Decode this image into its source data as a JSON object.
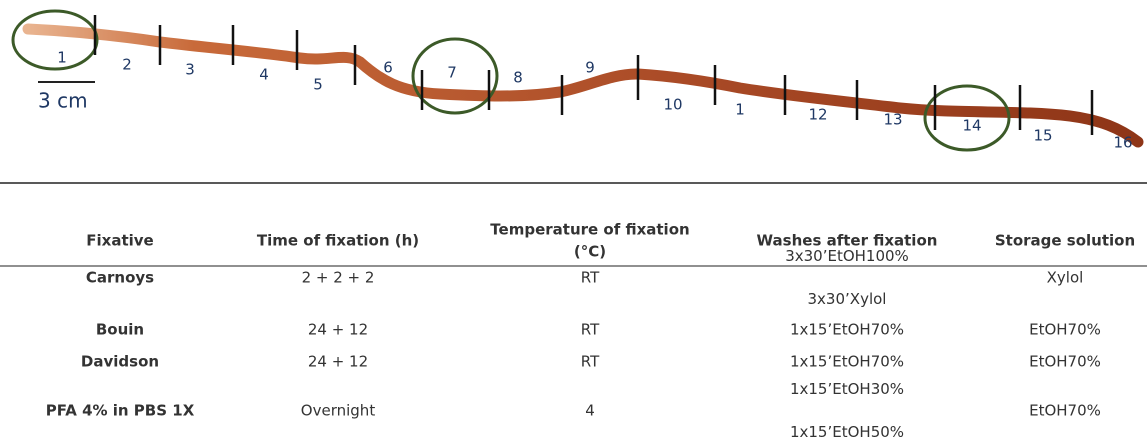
{
  "figure": {
    "scale_label": "3 cm",
    "segments": [
      "1",
      "2",
      "3",
      "4",
      "5",
      "6",
      "7",
      "8",
      "9",
      "10",
      "1",
      "12",
      "13",
      "14",
      "15",
      "16"
    ]
  },
  "table": {
    "header": [
      [
        "Fixative"
      ],
      [
        "Time of fixation (h)"
      ],
      [
        "Temperature of fixation",
        "(°C)"
      ],
      [
        "Washes after fixation"
      ],
      [
        "Storage solution"
      ]
    ],
    "rows": [
      [
        [
          "Carnoys"
        ],
        [
          "2 + 2 + 2"
        ],
        [
          "RT"
        ],
        [
          "3x30’EtOH100%",
          "3x30’Xylol"
        ],
        [
          "Xylol"
        ]
      ],
      [
        [
          "Bouin"
        ],
        [
          "24 + 12"
        ],
        [
          "RT"
        ],
        [
          "1x15’EtOH70%"
        ],
        [
          "EtOH70%"
        ]
      ],
      [
        [
          "Davidson"
        ],
        [
          "24 + 12"
        ],
        [
          "RT"
        ],
        [
          "1x15’EtOH70%"
        ],
        [
          "EtOH70%"
        ]
      ],
      [
        [
          "PFA 4% in PBS 1X"
        ],
        [
          "Overnight"
        ],
        [
          "4"
        ],
        [
          "1x15’EtOH30%",
          "1x15’EtOH50%"
        ],
        [
          "EtOH70%"
        ]
      ]
    ]
  }
}
